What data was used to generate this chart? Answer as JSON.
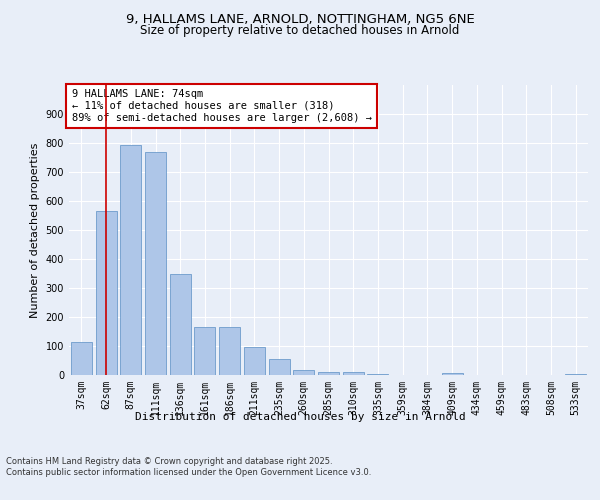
{
  "title_line1": "9, HALLAMS LANE, ARNOLD, NOTTINGHAM, NG5 6NE",
  "title_line2": "Size of property relative to detached houses in Arnold",
  "xlabel": "Distribution of detached houses by size in Arnold",
  "ylabel": "Number of detached properties",
  "categories": [
    "37sqm",
    "62sqm",
    "87sqm",
    "111sqm",
    "136sqm",
    "161sqm",
    "186sqm",
    "211sqm",
    "235sqm",
    "260sqm",
    "285sqm",
    "310sqm",
    "335sqm",
    "359sqm",
    "384sqm",
    "409sqm",
    "434sqm",
    "459sqm",
    "483sqm",
    "508sqm",
    "533sqm"
  ],
  "values": [
    113,
    565,
    793,
    770,
    350,
    167,
    167,
    97,
    55,
    18,
    12,
    12,
    5,
    0,
    0,
    8,
    0,
    0,
    0,
    0,
    5
  ],
  "bar_color": "#aec6e8",
  "bar_edge_color": "#5a8fc4",
  "vline_x": 1,
  "vline_color": "#cc0000",
  "annotation_text": "9 HALLAMS LANE: 74sqm\n← 11% of detached houses are smaller (318)\n89% of semi-detached houses are larger (2,608) →",
  "annotation_box_color": "#ffffff",
  "annotation_box_edge": "#cc0000",
  "ylim": [
    0,
    1000
  ],
  "yticks": [
    0,
    100,
    200,
    300,
    400,
    500,
    600,
    700,
    800,
    900,
    1000
  ],
  "bg_color": "#e8eef8",
  "plot_bg_color": "#e8eef8",
  "grid_color": "#ffffff",
  "footer_text": "Contains HM Land Registry data © Crown copyright and database right 2025.\nContains public sector information licensed under the Open Government Licence v3.0.",
  "title_fontsize": 9.5,
  "subtitle_fontsize": 8.5,
  "axis_label_fontsize": 8,
  "tick_fontsize": 7,
  "annotation_fontsize": 7.5,
  "footer_fontsize": 6
}
